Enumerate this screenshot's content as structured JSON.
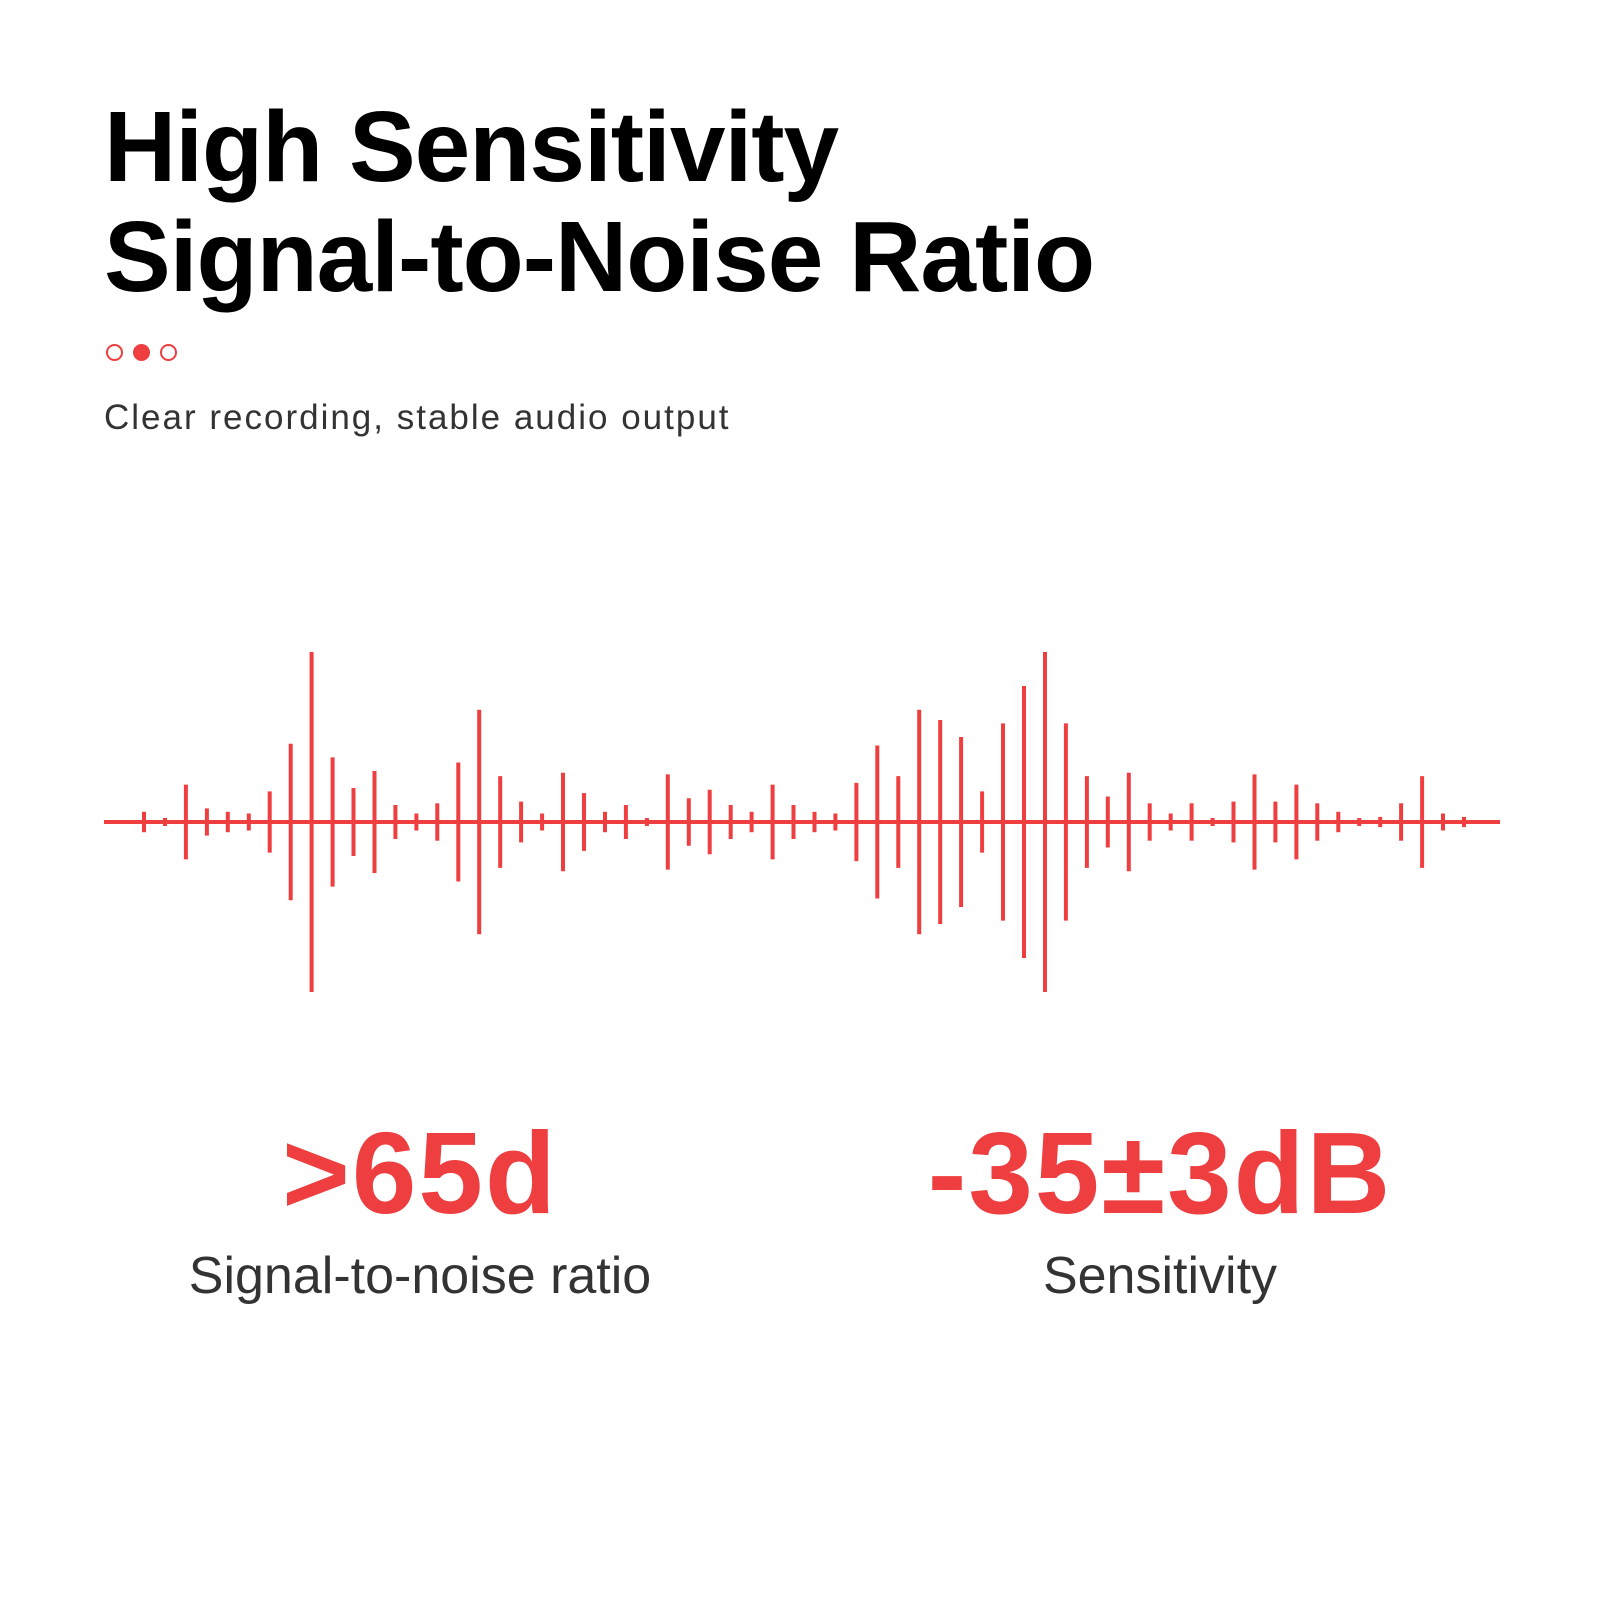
{
  "heading": {
    "line1": "High Sensitivity",
    "line2": "Signal-to-Noise Ratio"
  },
  "pager": {
    "count": 3,
    "active_index": 1
  },
  "subtitle": "Clear recording, stable audio output",
  "accent_color": "#ee3e40",
  "waveform": {
    "icon": "sound-wave-icon",
    "amplitudes": [
      0.06,
      0.02,
      0.22,
      0.08,
      0.06,
      0.05,
      0.18,
      0.46,
      1.0,
      0.38,
      0.2,
      0.3,
      0.1,
      0.05,
      0.11,
      0.35,
      0.66,
      0.27,
      0.12,
      0.05,
      0.29,
      0.17,
      0.06,
      0.1,
      0.02,
      0.28,
      0.14,
      0.19,
      0.1,
      0.06,
      0.22,
      0.1,
      0.06,
      0.05,
      0.23,
      0.45,
      0.27,
      0.66,
      0.6,
      0.5,
      0.18,
      0.58,
      0.8,
      1.0,
      0.58,
      0.27,
      0.15,
      0.29,
      0.11,
      0.05,
      0.11,
      0.02,
      0.12,
      0.28,
      0.12,
      0.22,
      0.11,
      0.06,
      0.02,
      0.03,
      0.11,
      0.27,
      0.05,
      0.03
    ]
  },
  "stats": [
    {
      "value": ">65d",
      "label": "Signal-to-noise ratio"
    },
    {
      "value": "-35±3dB",
      "label": "Sensitivity"
    }
  ]
}
